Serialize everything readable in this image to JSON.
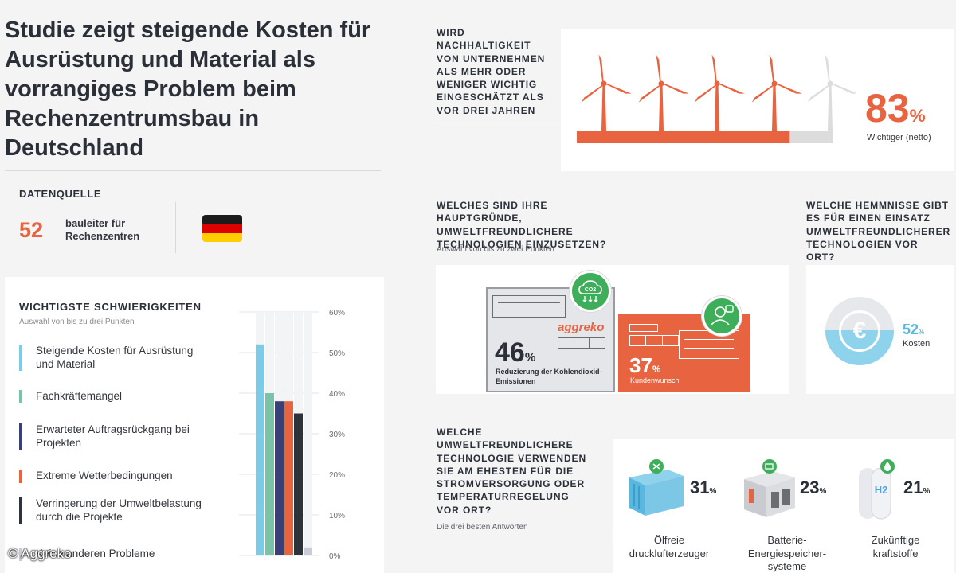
{
  "title": "Studie zeigt steigende Kosten für Ausrüstung und Material als vorrangiges Problem beim Rechenzentrumsbau in Deutschland",
  "data_source": {
    "label": "DATENQUELLE",
    "count": "52",
    "description": "bauleiter für Rechenzentren",
    "flag_colors": [
      "#1b1b1b",
      "#dd0000",
      "#ffce00"
    ]
  },
  "difficulties": {
    "title": "WICHTIGSTE SCHWIERIGKEITEN",
    "subtitle": "Auswahl von bis zu drei Punkten"
  },
  "wind": {
    "question": "WIRD NACHHALTIGKEIT VON UNTERNEHMEN ALS MEHR ODER WENIGER WICHTIG EINGESCHÄTZT ALS VOR DREI JAHREN",
    "percent": "83",
    "percent_sign": "%",
    "caption": "Wichtiger (netto)",
    "colors": {
      "active": "#e8633f",
      "inactive": "#dcdcdc"
    }
  },
  "reasons": {
    "question": "WELCHES SIND IHRE HAUPTGRÜNDE, UMWELTFREUNDLICHERE TECHNOLOGIEN EINZUSETZEN?",
    "subtitle": "Auswahl von bis zu zwei Punkten",
    "brand": "aggreko",
    "co2_label": "CO2",
    "items": [
      {
        "percent": "46",
        "label": "Reduzierung der Kohlendioxid-Emissionen"
      },
      {
        "percent": "37",
        "label": "Kundenwunsch"
      }
    ]
  },
  "obstacles": {
    "question": "WELCHE HEMMNISSE GIBT ES FÜR EINEN EINSATZ UMWELTFREUNDLICHERER TECHNOLOGIEN VOR ORT?",
    "percent": "52",
    "label": "Kosten",
    "icon": "euro-coin-icon"
  },
  "technology": {
    "question": "WELCHE UMWELTFREUNDLICHERE TECHNOLOGIE VERWENDEN SIE AM EHESTEN FÜR DIE STROMVERSORGUNG ODER TEMPERATURREGELUNG VOR ORT?",
    "subtitle": "Die drei besten Antworten",
    "items": [
      {
        "percent": "31",
        "label": "Ölfreie drucklufterzeuger",
        "icon": "compressor-icon"
      },
      {
        "percent": "23",
        "label": "Batterie-Energiespeicher-systeme",
        "icon": "battery-storage-icon"
      },
      {
        "percent": "21",
        "label": "Zukünftige kraftstoffe",
        "icon": "hydrogen-tank-icon",
        "formula": "H2"
      }
    ]
  },
  "percent_sign": "%",
  "copyright": "© Aggreko",
  "chart_data": {
    "type": "bar",
    "title": "WICHTIGSTE SCHWIERIGKEITEN",
    "subtitle": "Auswahl von bis zu drei Punkten",
    "categories": [
      "Steigende Kosten für Ausrüstung und Material",
      "Fachkräftemangel",
      "Erwarteter Auftragsrückgang bei Projekten",
      "Extreme Wetterbedingungen",
      "Verringerung der Umweltbelastung durch die Projekte",
      "Keine anderen Probleme"
    ],
    "values": [
      52,
      40,
      38,
      38,
      35,
      2
    ],
    "colors": [
      "#7ccbe8",
      "#7bc2a8",
      "#3a3f7a",
      "#e8633f",
      "#2e323b",
      "#c9cbd6"
    ],
    "ylim": [
      0,
      60
    ],
    "yticks": [
      "0%",
      "10%",
      "20%",
      "30%",
      "40%",
      "50%",
      "60%"
    ],
    "grid": true,
    "legend": "left"
  }
}
